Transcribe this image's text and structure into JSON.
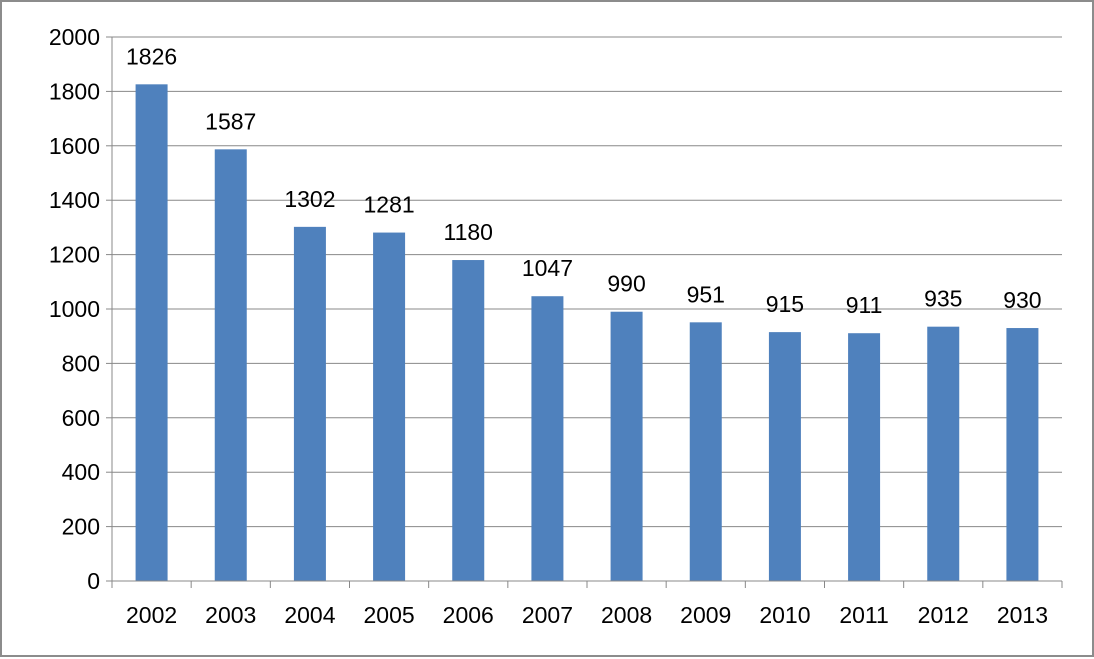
{
  "chart_data": {
    "type": "bar",
    "title": "",
    "xlabel": "",
    "ylabel": "",
    "categories": [
      "2002",
      "2003",
      "2004",
      "2005",
      "2006",
      "2007",
      "2008",
      "2009",
      "2010",
      "2011",
      "2012",
      "2013"
    ],
    "values": [
      1826,
      1587,
      1302,
      1281,
      1180,
      1047,
      990,
      951,
      915,
      911,
      935,
      930
    ],
    "ylim": [
      0,
      2000
    ],
    "yticks": [
      0,
      200,
      400,
      600,
      800,
      1000,
      1200,
      1400,
      1600,
      1800,
      2000
    ],
    "data_labels": [
      "1826",
      "1587",
      "1302",
      "1281",
      "1180",
      "1047",
      "990",
      "951",
      "915",
      "911",
      "935",
      "930"
    ],
    "grid": true,
    "legend": "none",
    "colors": {
      "bar": "#4f81bd",
      "gridline": "#888888",
      "axis": "#888888",
      "frame": "#8c8c8c"
    }
  }
}
